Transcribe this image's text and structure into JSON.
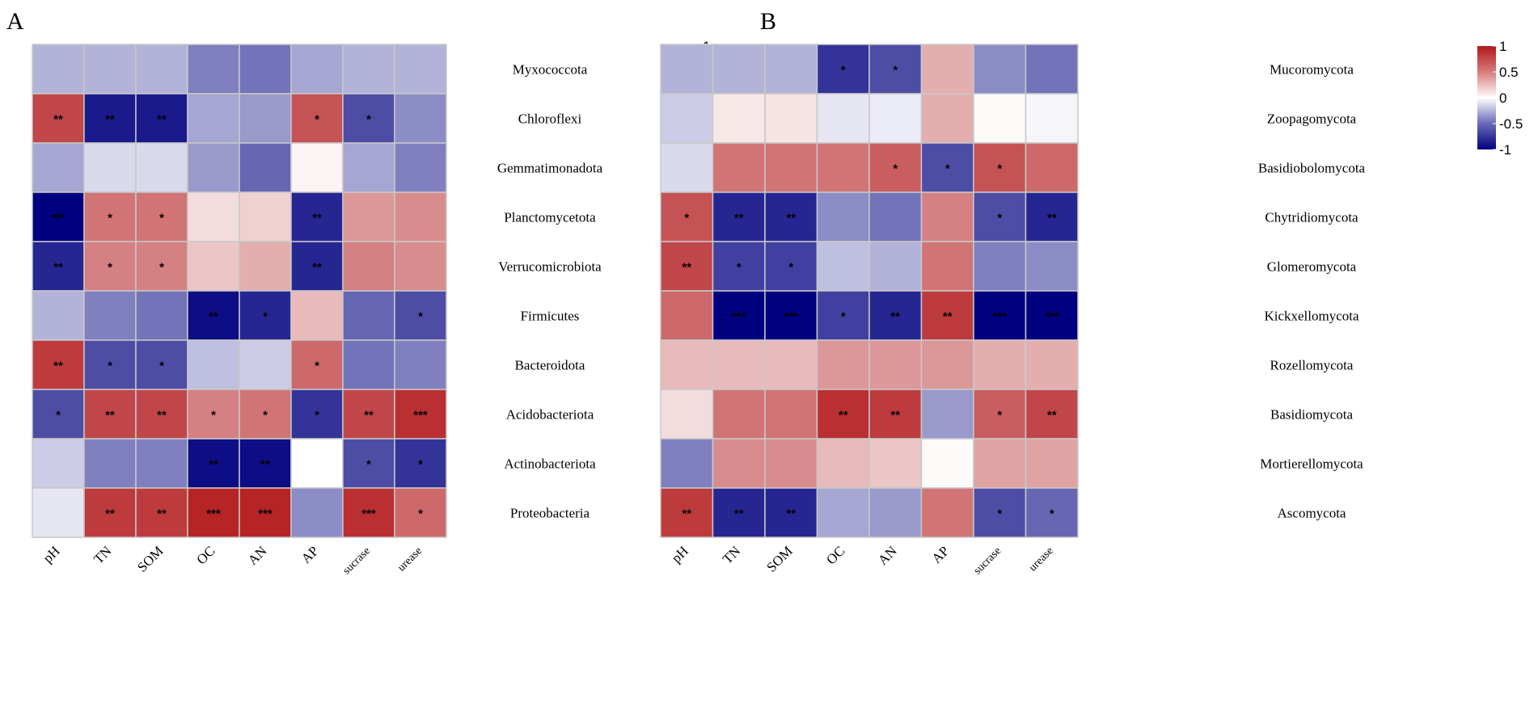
{
  "colors": {
    "neg": "#000080",
    "mid": "#ffffff",
    "pos": "#b2181b",
    "grid": "#c8c8c8"
  },
  "chart_data": [
    {
      "type": "heatmap",
      "panel": "A",
      "columns": [
        "pH",
        "TN",
        "SOM",
        "OC",
        "AN",
        "AP",
        "sucrase",
        "urease"
      ],
      "rows": [
        "Myxococcota",
        "Chloroflexi",
        "Gemmatimonadota",
        "Planctomycetota",
        "Verrucomicrobiota",
        "Firmicutes",
        "Bacteroidota",
        "Acidobacteriota",
        "Actinobacteriota",
        "Proteobacteria"
      ],
      "values": [
        [
          -0.3,
          -0.3,
          -0.3,
          -0.5,
          -0.55,
          -0.35,
          -0.3,
          -0.3
        ],
        [
          0.8,
          -0.9,
          -0.9,
          -0.35,
          -0.4,
          0.75,
          -0.7,
          -0.45
        ],
        [
          -0.35,
          -0.15,
          -0.15,
          -0.4,
          -0.6,
          0.05,
          -0.35,
          -0.5
        ],
        [
          -1.0,
          0.6,
          0.6,
          0.15,
          0.2,
          -0.85,
          0.45,
          0.5
        ],
        [
          -0.85,
          0.55,
          0.55,
          0.25,
          0.35,
          -0.85,
          0.55,
          0.5
        ],
        [
          -0.3,
          -0.5,
          -0.55,
          -0.95,
          -0.85,
          0.3,
          -0.6,
          -0.7
        ],
        [
          0.85,
          -0.7,
          -0.7,
          -0.25,
          -0.2,
          0.65,
          -0.55,
          -0.5
        ],
        [
          -0.7,
          0.8,
          0.8,
          0.55,
          0.6,
          -0.8,
          0.8,
          0.9
        ],
        [
          -0.2,
          -0.5,
          -0.5,
          -0.95,
          -0.95,
          0.0,
          -0.7,
          -0.8
        ],
        [
          -0.1,
          0.85,
          0.85,
          0.95,
          0.95,
          -0.45,
          0.9,
          0.65
        ]
      ],
      "significance": [
        [
          "",
          "",
          "",
          "",
          "",
          "",
          "",
          ""
        ],
        [
          "**",
          "**",
          "**",
          "",
          "",
          "*",
          "*",
          ""
        ],
        [
          "",
          "",
          "",
          "",
          "",
          "",
          "",
          ""
        ],
        [
          "***",
          "*",
          "*",
          "",
          "",
          "**",
          "",
          ""
        ],
        [
          "**",
          "*",
          "*",
          "",
          "",
          "**",
          "",
          ""
        ],
        [
          "",
          "",
          "",
          "**",
          "*",
          "",
          "",
          "*"
        ],
        [
          "**",
          "*",
          "*",
          "",
          "",
          "*",
          "",
          ""
        ],
        [
          "*",
          "**",
          "**",
          "*",
          "*",
          "*",
          "**",
          "***"
        ],
        [
          "",
          "",
          "",
          "**",
          "**",
          "",
          "*",
          "*"
        ],
        [
          "",
          "**",
          "**",
          "***",
          "***",
          "",
          "***",
          "*"
        ]
      ],
      "colorbar_ticks": [
        "1",
        "0.5",
        "0",
        "-0.5",
        "-1"
      ],
      "colorbar_range": [
        -1,
        1
      ]
    },
    {
      "type": "heatmap",
      "panel": "B",
      "columns": [
        "pH",
        "TN",
        "SOM",
        "OC",
        "AN",
        "AP",
        "sucrase",
        "urease"
      ],
      "rows": [
        "Mucoromycota",
        "Zoopagomycota",
        "Basidiobolomycota",
        "Chytridiomycota",
        "Glomeromycota",
        "Kickxellomycota",
        "Rozellomycota",
        "Basidiomycota",
        "Mortierellomycota",
        "Ascomycota"
      ],
      "values": [
        [
          -0.3,
          -0.3,
          -0.3,
          -0.8,
          -0.7,
          0.35,
          -0.45,
          -0.55
        ],
        [
          -0.2,
          0.1,
          0.12,
          -0.1,
          -0.08,
          0.35,
          0.02,
          -0.04
        ],
        [
          -0.15,
          0.6,
          0.6,
          0.6,
          0.7,
          -0.7,
          0.75,
          0.65
        ],
        [
          0.75,
          -0.85,
          -0.85,
          -0.45,
          -0.55,
          0.55,
          -0.7,
          -0.85
        ],
        [
          0.8,
          -0.75,
          -0.75,
          -0.25,
          -0.3,
          0.6,
          -0.5,
          -0.45
        ],
        [
          0.65,
          -1.0,
          -1.0,
          -0.75,
          -0.85,
          0.85,
          -1.0,
          -1.0
        ],
        [
          0.3,
          0.3,
          0.3,
          0.45,
          0.45,
          0.45,
          0.35,
          0.35
        ],
        [
          0.15,
          0.6,
          0.6,
          0.9,
          0.85,
          -0.4,
          0.7,
          0.8
        ],
        [
          -0.5,
          0.5,
          0.5,
          0.3,
          0.25,
          0.02,
          0.4,
          0.4
        ],
        [
          0.85,
          -0.85,
          -0.85,
          -0.35,
          -0.4,
          0.6,
          -0.7,
          -0.6
        ]
      ],
      "significance": [
        [
          "",
          "",
          "",
          "*",
          "*",
          "",
          "",
          ""
        ],
        [
          "",
          "",
          "",
          "",
          "",
          "",
          "",
          ""
        ],
        [
          "",
          "",
          "",
          "",
          "*",
          "*",
          "*",
          ""
        ],
        [
          "*",
          "**",
          "**",
          "",
          "",
          "",
          "*",
          "**"
        ],
        [
          "**",
          "*",
          "*",
          "",
          "",
          "",
          "",
          ""
        ],
        [
          "",
          "***",
          "***",
          "*",
          "**",
          "**",
          "***",
          "***"
        ],
        [
          "",
          "",
          "",
          "",
          "",
          "",
          "",
          ""
        ],
        [
          "",
          "",
          "",
          "**",
          "**",
          "",
          "*",
          "**"
        ],
        [
          "",
          "",
          "",
          "",
          "",
          "",
          "",
          ""
        ],
        [
          "**",
          "**",
          "**",
          "",
          "",
          "",
          "*",
          "*"
        ]
      ],
      "colorbar_ticks": [
        "1",
        "0.5",
        "0",
        "-0.5",
        "-1"
      ],
      "colorbar_range": [
        -1,
        1
      ]
    }
  ]
}
